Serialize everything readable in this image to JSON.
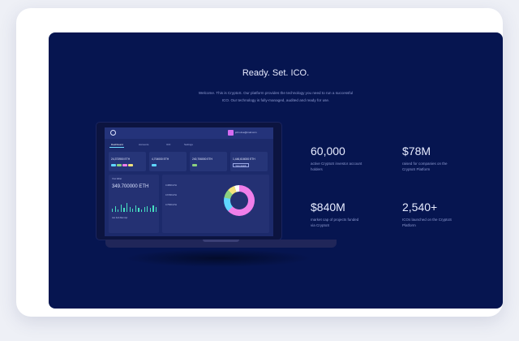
{
  "hero": {
    "title": "Ready. Set. ICO.",
    "subtitle_line1": "Welcome. This is CryptoS. Our platform provides the technology you need to run a successful",
    "subtitle_line2": "ICO. Our technology is fully-managed, audited and ready for use."
  },
  "dashboard": {
    "user": "john.doe@mail.com",
    "menu": [
      "Dashboard",
      "Accounts",
      "ICO",
      "Settings"
    ],
    "cards": [
      {
        "value": "24,373900 ETH"
      },
      {
        "value": "4,704000 ETH"
      },
      {
        "value": "240,706000 ETH"
      },
      {
        "value": "1,446,616000 ETH",
        "button": "View details"
      }
    ],
    "balance_label": "Your Ether",
    "balance": "349.700000 ETH",
    "legend": [
      "Jan",
      "Feb",
      "Mar",
      "Apr"
    ],
    "transactions": [
      "0.3800 ETH",
      "0.6700 ETH",
      "0.7500 ETH"
    ],
    "colors": {
      "pink": "#ef7ee9",
      "cyan": "#5fd7ff",
      "green": "#8cd17f",
      "yellow": "#f2e27b",
      "teal": "#46e0c2"
    }
  },
  "stats": [
    {
      "value": "60,000",
      "line1": "active CryptoS investor account",
      "line2": "holders"
    },
    {
      "value": "$78M",
      "line1": "raised for companies on the",
      "line2": "CryptoS Platform"
    },
    {
      "value": "$840M",
      "line1": "market cap of projects funded",
      "line2": "via CryptoS"
    },
    {
      "value": "2,540+",
      "line1": "ICOs launched on the CryptoS",
      "line2": "Platform"
    }
  ]
}
